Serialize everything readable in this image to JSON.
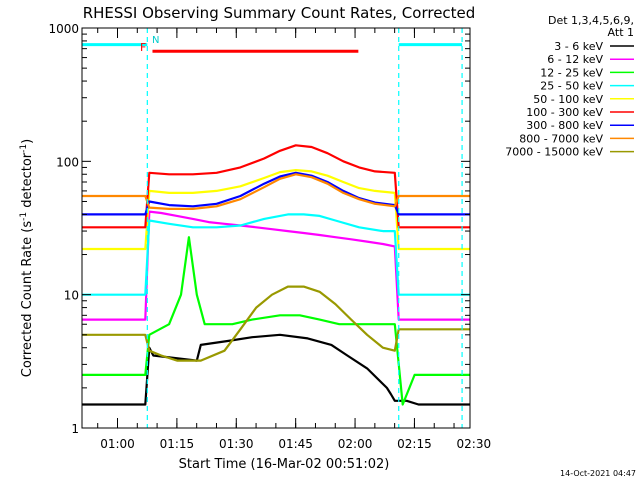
{
  "chart_data": {
    "type": "line",
    "title": "RHESSI Observing Summary Count Rates, Corrected",
    "xlabel": "Start Time (16-Mar-02 00:51:02)",
    "ylabel_parts": [
      "Corrected Count Rate (s",
      "-1",
      " detector",
      "-1",
      ")"
    ],
    "x_unit": "minutes since 00:51:02",
    "xlim": [
      0,
      98
    ],
    "ylim": [
      1,
      1000
    ],
    "y_scale": "log",
    "y_ticks": [
      {
        "value": 1,
        "label": "1"
      },
      {
        "value": 10,
        "label": "10"
      },
      {
        "value": 100,
        "label": "100"
      },
      {
        "value": 1000,
        "label": "1000"
      }
    ],
    "x_ticks": [
      {
        "value": 8.967,
        "label": "01:00"
      },
      {
        "value": 23.967,
        "label": "01:15"
      },
      {
        "value": 38.967,
        "label": "01:30"
      },
      {
        "value": 53.967,
        "label": "01:45"
      },
      {
        "value": 68.967,
        "label": "02:00"
      },
      {
        "value": 83.967,
        "label": "02:15"
      },
      {
        "value": 98.967,
        "label": "02:30"
      }
    ],
    "legend_header": [
      "Det 1,3,4,5,6,9,",
      "Att 1"
    ],
    "legend_position": "right",
    "annotations": {
      "flare": "F",
      "night": "N"
    },
    "series": [
      {
        "name": "3 - 6 keV",
        "color": "#000000",
        "x": [
          0,
          16,
          17,
          18,
          29,
          30,
          37,
          43,
          50,
          57,
          63,
          67,
          72,
          77,
          78,
          79,
          82,
          85,
          86,
          89,
          98
        ],
        "y": [
          1.5,
          1.5,
          4.0,
          3.5,
          3.2,
          4.2,
          4.5,
          4.8,
          5.0,
          4.7,
          4.2,
          3.5,
          2.8,
          2.0,
          1.8,
          1.6,
          1.6,
          1.5,
          1.5,
          1.5,
          1.5
        ]
      },
      {
        "name": "6 - 12 keV",
        "color": "#ff00ff",
        "x": [
          0,
          4,
          8,
          12,
          16,
          17,
          20,
          24,
          28,
          32,
          36,
          40,
          44,
          48,
          52,
          56,
          60,
          64,
          68,
          72,
          76,
          79,
          80,
          84,
          88,
          92,
          98
        ],
        "y": [
          6.5,
          6.5,
          6.5,
          6.5,
          6.5,
          42,
          41,
          39,
          37,
          35,
          34,
          33,
          32,
          31,
          30,
          29,
          28,
          27,
          26,
          25,
          24,
          23,
          6.5,
          6.5,
          6.5,
          6.5,
          6.5
        ]
      },
      {
        "name": "12 - 25 keV",
        "color": "#00ff00",
        "x": [
          0,
          8,
          16,
          17,
          22,
          25,
          27,
          29,
          31,
          34,
          38,
          43,
          50,
          55,
          60,
          65,
          72,
          78,
          79,
          81,
          84,
          98
        ],
        "y": [
          2.5,
          2.5,
          2.5,
          5,
          6,
          10,
          27,
          10,
          6,
          6,
          6,
          6.5,
          7,
          7,
          6.5,
          6,
          6,
          6,
          6,
          1.5,
          2.5,
          2.5
        ]
      },
      {
        "name": "25 - 50 keV",
        "color": "#00ffff",
        "x": [
          0,
          16,
          17,
          22,
          28,
          34,
          40,
          46,
          52,
          56,
          60,
          64,
          70,
          76,
          79,
          80,
          88,
          98
        ],
        "y": [
          10,
          10,
          36,
          34,
          32,
          32,
          33,
          37,
          40,
          40,
          39,
          36,
          32,
          30,
          30,
          10,
          10,
          10
        ]
      },
      {
        "name": "50 - 100 keV",
        "color": "#ffff00",
        "x": [
          0,
          16,
          17,
          22,
          28,
          34,
          40,
          46,
          50,
          54,
          58,
          62,
          66,
          70,
          74,
          79,
          80,
          88,
          98
        ],
        "y": [
          22,
          22,
          60,
          58,
          58,
          60,
          65,
          75,
          83,
          86,
          84,
          78,
          70,
          63,
          60,
          58,
          22,
          22,
          22
        ]
      },
      {
        "name": "100 - 300 keV",
        "color": "#ff0000",
        "x": [
          0,
          16,
          17,
          22,
          28,
          34,
          40,
          46,
          50,
          54,
          58,
          62,
          66,
          70,
          74,
          79,
          80,
          88,
          98
        ],
        "y": [
          32,
          32,
          82,
          80,
          80,
          82,
          90,
          105,
          120,
          132,
          128,
          115,
          100,
          90,
          84,
          82,
          32,
          32,
          32
        ]
      },
      {
        "name": "300 - 800 keV",
        "color": "#0000ff",
        "x": [
          0,
          16,
          17,
          22,
          28,
          34,
          40,
          46,
          50,
          54,
          58,
          62,
          66,
          70,
          74,
          79,
          80,
          88,
          98
        ],
        "y": [
          40,
          40,
          50,
          47,
          46,
          48,
          55,
          68,
          77,
          82,
          78,
          70,
          60,
          53,
          49,
          47,
          40,
          40,
          40
        ]
      },
      {
        "name": "800 - 7000 keV",
        "color": "#ff8800",
        "x": [
          0,
          16,
          17,
          22,
          28,
          34,
          40,
          46,
          50,
          54,
          58,
          62,
          66,
          70,
          74,
          79,
          80,
          88,
          98
        ],
        "y": [
          55,
          55,
          45,
          44,
          44,
          46,
          52,
          64,
          74,
          80,
          76,
          68,
          58,
          52,
          48,
          46,
          55,
          55,
          55
        ]
      },
      {
        "name": "7000 - 15000 keV",
        "color": "#999900",
        "x": [
          0,
          12,
          16,
          17,
          20,
          24,
          30,
          36,
          40,
          44,
          48,
          52,
          56,
          60,
          64,
          68,
          72,
          76,
          79,
          80,
          84,
          98
        ],
        "y": [
          5,
          5,
          5,
          3.8,
          3.5,
          3.2,
          3.2,
          3.8,
          5.5,
          8,
          10,
          11.5,
          11.5,
          10.5,
          8.5,
          6.5,
          5,
          4,
          3.8,
          5.5,
          5.5,
          5.5
        ]
      }
    ],
    "reference_lines": [
      {
        "x": 16.5,
        "style": "dashed",
        "color": "#00ffff"
      },
      {
        "x": 80.0,
        "style": "dashed",
        "color": "#00ffff"
      },
      {
        "x": 96.0,
        "style": "dashed",
        "color": "#00ffff"
      }
    ],
    "intervals": [
      {
        "label_ref": "night",
        "x": [
          0,
          16.5
        ],
        "y": 750,
        "color": "#00ffff"
      },
      {
        "label_ref": "night",
        "x": [
          80.0,
          96.0
        ],
        "y": 750,
        "color": "#00ffff"
      },
      {
        "label_ref": "flare",
        "x": [
          17.8,
          69.8
        ],
        "y": 670,
        "color": "#ff0000"
      }
    ]
  },
  "footer_timestamp": "14-Oct-2021 04:47"
}
